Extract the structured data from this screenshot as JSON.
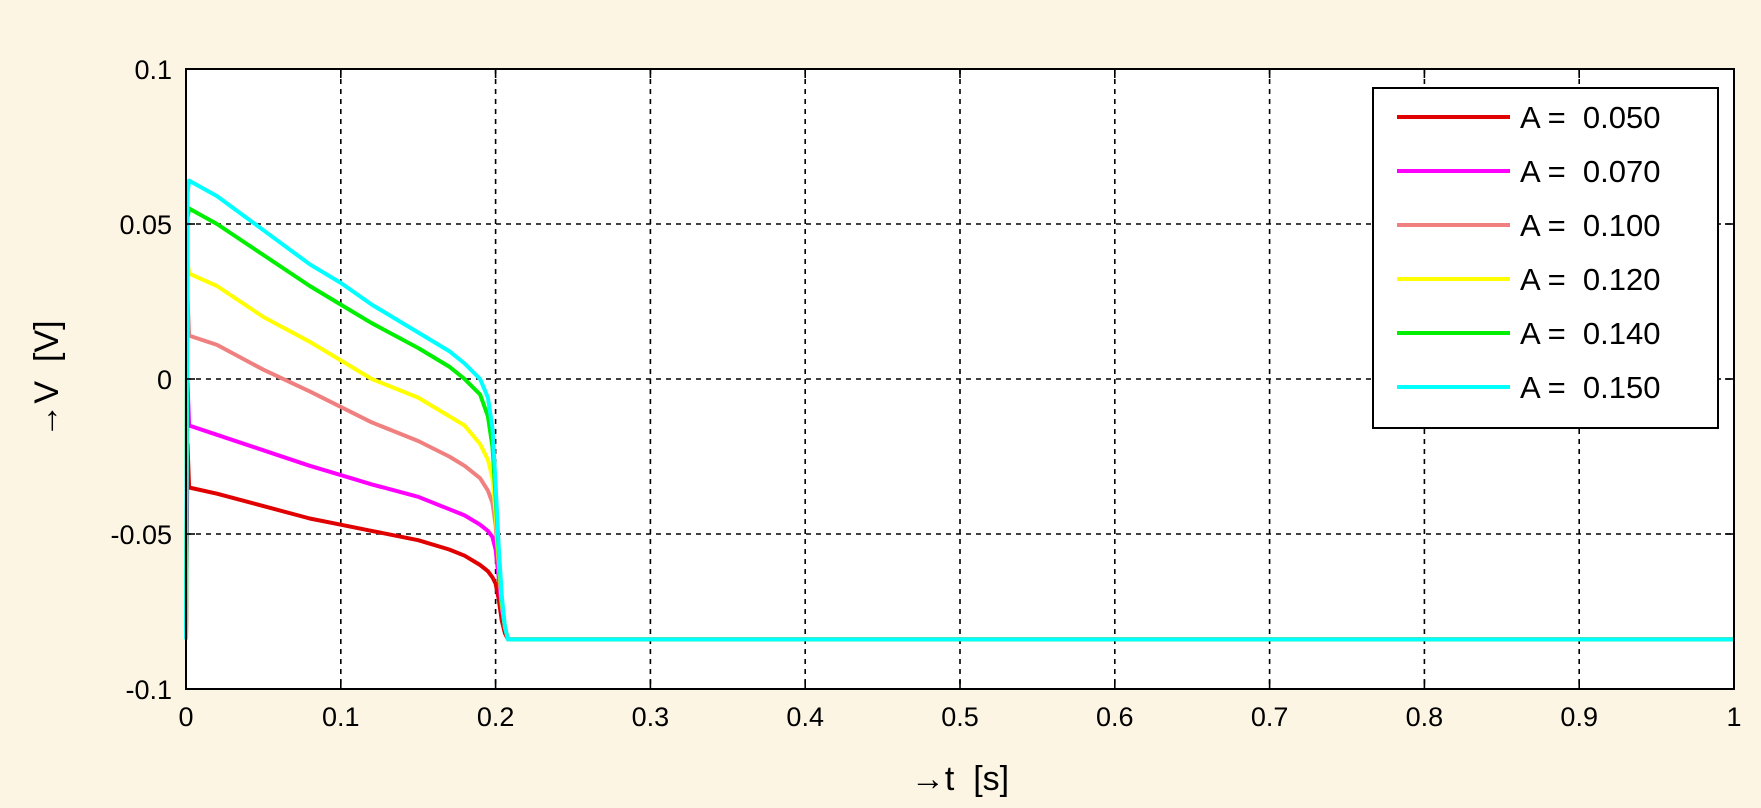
{
  "chart_data": {
    "type": "line",
    "xlabel": "→t  [s]",
    "ylabel": "→V  [V]",
    "xlim": [
      0,
      1
    ],
    "ylim": [
      -0.1,
      0.1
    ],
    "xticks": [
      0,
      0.1,
      0.2,
      0.3,
      0.4,
      0.5,
      0.6,
      0.7,
      0.8,
      0.9,
      1
    ],
    "xtick_labels": [
      "0",
      "0.1",
      "0.2",
      "0.3",
      "0.4",
      "0.5",
      "0.6",
      "0.7",
      "0.8",
      "0.9",
      "1"
    ],
    "yticks": [
      -0.1,
      -0.05,
      0,
      0.05,
      0.1
    ],
    "ytick_labels": [
      "-0.1",
      "-0.05",
      "0",
      "0.05",
      "0.1"
    ],
    "grid": true,
    "grid_style": "dashed",
    "legend_position": "top-right",
    "background": "#fdf5e4",
    "series": [
      {
        "name": "A =  0.050",
        "color": "#e00000",
        "x": [
          0,
          0,
          0.001,
          0.002,
          0.02,
          0.05,
          0.08,
          0.1,
          0.12,
          0.15,
          0.17,
          0.18,
          0.19,
          0.195,
          0.198,
          0.2,
          0.202,
          0.204,
          0.206,
          0.208,
          0.21,
          0.25,
          0.5,
          0.75,
          1.0
        ],
        "values": [
          -0.084,
          -0.084,
          -0.021,
          -0.035,
          -0.037,
          -0.041,
          -0.045,
          -0.047,
          -0.049,
          -0.052,
          -0.055,
          -0.057,
          -0.06,
          -0.062,
          -0.064,
          -0.066,
          -0.071,
          -0.078,
          -0.082,
          -0.084,
          -0.084,
          -0.084,
          -0.084,
          -0.084,
          -0.084
        ]
      },
      {
        "name": "A =  0.070",
        "color": "#ff00ff",
        "x": [
          0,
          0,
          0.001,
          0.002,
          0.02,
          0.05,
          0.08,
          0.1,
          0.12,
          0.15,
          0.17,
          0.18,
          0.19,
          0.195,
          0.198,
          0.2,
          0.202,
          0.204,
          0.206,
          0.208,
          0.21,
          0.25,
          0.5,
          0.75,
          1.0
        ],
        "values": [
          -0.084,
          -0.084,
          -0.001,
          -0.015,
          -0.018,
          -0.023,
          -0.028,
          -0.031,
          -0.034,
          -0.038,
          -0.042,
          -0.044,
          -0.047,
          -0.049,
          -0.051,
          -0.055,
          -0.064,
          -0.074,
          -0.08,
          -0.084,
          -0.084,
          -0.084,
          -0.084,
          -0.084,
          -0.084
        ]
      },
      {
        "name": "A =  0.100",
        "color": "#f08080",
        "x": [
          0,
          0,
          0.001,
          0.002,
          0.02,
          0.05,
          0.08,
          0.1,
          0.12,
          0.15,
          0.17,
          0.18,
          0.19,
          0.195,
          0.198,
          0.2,
          0.202,
          0.204,
          0.206,
          0.208,
          0.21,
          0.25,
          0.5,
          0.75,
          1.0
        ],
        "values": [
          -0.084,
          -0.084,
          0.027,
          0.014,
          0.011,
          0.003,
          -0.004,
          -0.009,
          -0.014,
          -0.02,
          -0.025,
          -0.028,
          -0.032,
          -0.036,
          -0.04,
          -0.047,
          -0.06,
          -0.073,
          -0.08,
          -0.084,
          -0.084,
          -0.084,
          -0.084,
          -0.084,
          -0.084
        ]
      },
      {
        "name": "A =  0.120",
        "color": "#ffff00",
        "x": [
          0,
          0,
          0.001,
          0.002,
          0.02,
          0.05,
          0.08,
          0.1,
          0.12,
          0.15,
          0.17,
          0.18,
          0.19,
          0.195,
          0.198,
          0.2,
          0.202,
          0.204,
          0.206,
          0.208,
          0.21,
          0.25,
          0.5,
          0.75,
          1.0
        ],
        "values": [
          -0.084,
          -0.084,
          0.038,
          0.034,
          0.03,
          0.02,
          0.012,
          0.006,
          0.0,
          -0.006,
          -0.012,
          -0.015,
          -0.021,
          -0.026,
          -0.032,
          -0.043,
          -0.058,
          -0.072,
          -0.08,
          -0.084,
          -0.084,
          -0.084,
          -0.084,
          -0.084,
          -0.084
        ]
      },
      {
        "name": "A =  0.140",
        "color": "#00ee00",
        "x": [
          0,
          0,
          0.001,
          0.002,
          0.02,
          0.05,
          0.08,
          0.1,
          0.12,
          0.15,
          0.17,
          0.18,
          0.19,
          0.195,
          0.198,
          0.2,
          0.202,
          0.204,
          0.206,
          0.208,
          0.21,
          0.25,
          0.5,
          0.75,
          1.0
        ],
        "values": [
          -0.084,
          -0.084,
          0.052,
          0.055,
          0.05,
          0.04,
          0.03,
          0.024,
          0.018,
          0.01,
          0.004,
          0.0,
          -0.005,
          -0.012,
          -0.022,
          -0.038,
          -0.056,
          -0.071,
          -0.08,
          -0.084,
          -0.084,
          -0.084,
          -0.084,
          -0.084,
          -0.084
        ]
      },
      {
        "name": "A =  0.150",
        "color": "#00ffff",
        "x": [
          0,
          0,
          0.001,
          0.002,
          0.02,
          0.05,
          0.08,
          0.1,
          0.12,
          0.15,
          0.17,
          0.18,
          0.19,
          0.195,
          0.198,
          0.2,
          0.202,
          0.204,
          0.206,
          0.208,
          0.21,
          0.25,
          0.5,
          0.75,
          1.0
        ],
        "values": [
          -0.084,
          -0.084,
          0.06,
          0.064,
          0.059,
          0.048,
          0.037,
          0.031,
          0.024,
          0.015,
          0.009,
          0.005,
          0.0,
          -0.006,
          -0.016,
          -0.034,
          -0.054,
          -0.07,
          -0.08,
          -0.084,
          -0.084,
          -0.084,
          -0.084,
          -0.084,
          -0.084
        ]
      }
    ]
  }
}
